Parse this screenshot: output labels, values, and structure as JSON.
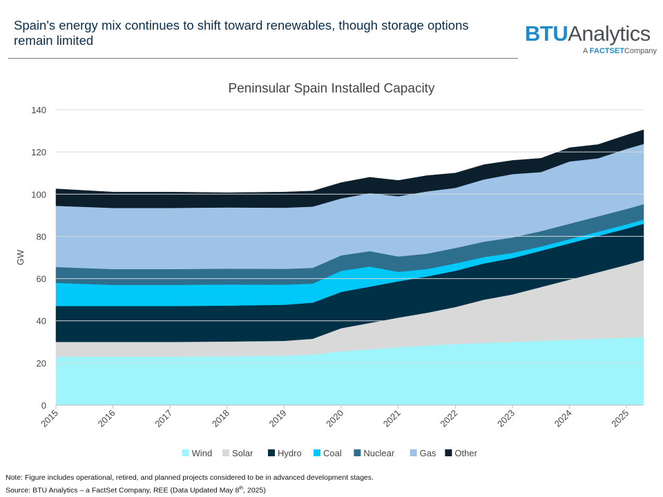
{
  "header": {
    "headline": "Spain's energy mix continues to shift toward renewables, though storage options remain limited"
  },
  "logo": {
    "brand_part1": "BTU",
    "brand_part2": "Analytics",
    "sub_prefix": "A",
    "sub_factset": "FACTSET",
    "sub_suffix": "Company"
  },
  "footnote": {
    "note": "Note: Figure includes operational, retired, and planned projects considered to be in advanced development stages.",
    "source_prefix": "Source: BTU Analytics – a FactSet Company, REE (Data Updated May 8",
    "source_sup": "th",
    "source_suffix": ", 2025)"
  },
  "chart_data": {
    "type": "area",
    "stacked": true,
    "title": "Peninsular Spain Installed Capacity",
    "xlabel": "",
    "ylabel": "GW",
    "ylim": [
      0,
      140
    ],
    "xlim": [
      2015.0,
      2025.3
    ],
    "yticks": [
      0,
      20,
      40,
      60,
      80,
      100,
      120,
      140
    ],
    "xticks": [
      2015,
      2016,
      2017,
      2018,
      2019,
      2020,
      2021,
      2022,
      2023,
      2024,
      2025
    ],
    "xtick_labels": [
      "2015",
      "2016",
      "2017",
      "2018",
      "2019",
      "2020",
      "2021",
      "2022",
      "2023",
      "2024",
      "2025"
    ],
    "grid": "horizontal",
    "legend_position": "bottom",
    "x": [
      2015.0,
      2016.0,
      2017.0,
      2018.0,
      2019.0,
      2019.5,
      2020.0,
      2020.5,
      2021.0,
      2021.5,
      2022.0,
      2022.5,
      2023.0,
      2023.5,
      2024.0,
      2024.5,
      2025.0,
      2025.3
    ],
    "series": [
      {
        "name": "Wind",
        "color": "#9ef5fb",
        "values": [
          23.0,
          23.0,
          23.0,
          23.2,
          23.5,
          24.0,
          25.5,
          26.5,
          27.5,
          28.3,
          29.0,
          29.5,
          30.0,
          30.5,
          31.0,
          31.5,
          32.0,
          32.3
        ]
      },
      {
        "name": "Solar",
        "color": "#d9d9d9",
        "values": [
          7.0,
          7.0,
          7.0,
          7.0,
          7.0,
          7.5,
          11.0,
          12.5,
          14.0,
          15.5,
          17.5,
          20.5,
          22.5,
          25.5,
          28.5,
          31.5,
          34.5,
          36.5
        ]
      },
      {
        "name": "Hydro",
        "color": "#003046",
        "values": [
          17.0,
          17.0,
          17.0,
          17.0,
          17.1,
          17.1,
          17.2,
          17.2,
          17.2,
          17.2,
          17.2,
          17.2,
          17.2,
          17.2,
          17.2,
          17.2,
          17.2,
          17.2
        ]
      },
      {
        "name": "Coal",
        "color": "#00c8f8",
        "values": [
          11.0,
          10.0,
          10.0,
          10.0,
          9.5,
          9.0,
          10.0,
          9.5,
          4.5,
          3.5,
          3.5,
          3.0,
          2.5,
          2.0,
          2.0,
          2.0,
          2.0,
          2.0
        ]
      },
      {
        "name": "Nuclear",
        "color": "#2e6f8e",
        "values": [
          7.5,
          7.5,
          7.5,
          7.5,
          7.5,
          7.5,
          7.3,
          7.3,
          7.3,
          7.3,
          7.3,
          7.3,
          7.3,
          7.3,
          7.3,
          7.3,
          7.3,
          7.3
        ]
      },
      {
        "name": "Gas",
        "color": "#9fc3e7",
        "values": [
          29.0,
          29.0,
          29.0,
          29.0,
          29.0,
          29.0,
          27.0,
          27.5,
          28.5,
          29.5,
          28.5,
          29.5,
          30.0,
          28.0,
          29.5,
          27.5,
          28.5,
          28.5
        ]
      },
      {
        "name": "Other",
        "color": "#0c1f2c",
        "values": [
          8.0,
          7.5,
          7.5,
          7.0,
          7.4,
          7.4,
          7.5,
          7.5,
          7.5,
          7.5,
          7.0,
          7.0,
          6.5,
          6.5,
          6.5,
          6.5,
          6.5,
          6.7
        ]
      }
    ]
  }
}
